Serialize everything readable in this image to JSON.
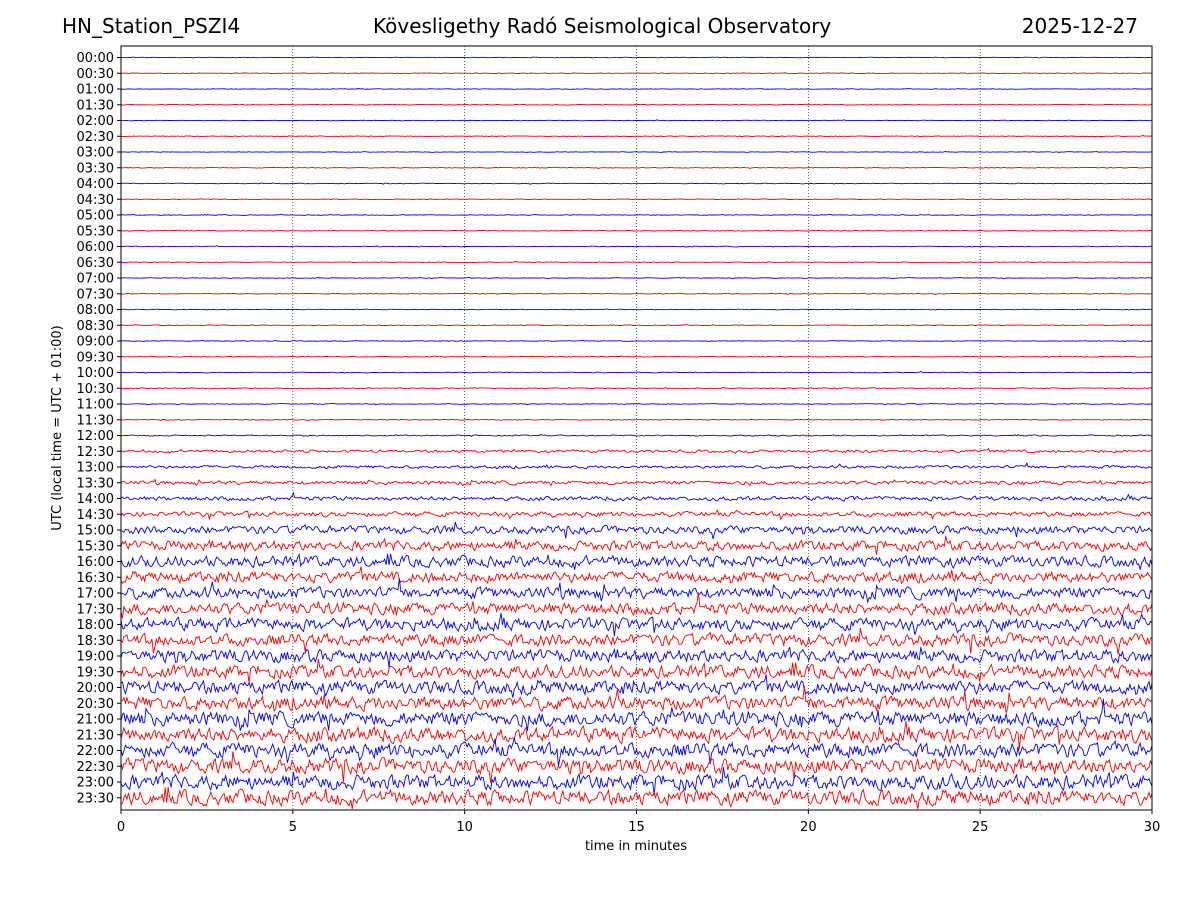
{
  "header": {
    "station": "HN_Station_PSZI4",
    "title": "Kövesligethy Radó Seismological Observatory",
    "date": "2025-12-27"
  },
  "chart_data": {
    "type": "line",
    "title": "Kövesligethy Radó Seismological Observatory",
    "subtitle_left": "HN_Station_PSZI4",
    "subtitle_right": "2025-12-27",
    "xlabel": "time in minutes",
    "ylabel": "UTC (local time = UTC + 01:00)",
    "xlim": [
      0,
      30
    ],
    "x_ticks": [
      "0",
      "5",
      "10",
      "15",
      "20",
      "25",
      "30"
    ],
    "x_gridlines": [
      5,
      10,
      15,
      20,
      25
    ],
    "grid": "vertical dotted",
    "trace_colors": [
      "#0000ff",
      "#ff0000"
    ],
    "rows": [
      "00:00",
      "00:30",
      "01:00",
      "01:30",
      "02:00",
      "02:30",
      "03:00",
      "03:30",
      "04:00",
      "04:30",
      "05:00",
      "05:30",
      "06:00",
      "06:30",
      "07:00",
      "07:30",
      "08:00",
      "08:30",
      "09:00",
      "09:30",
      "10:00",
      "10:30",
      "11:00",
      "11:30",
      "12:00",
      "12:30",
      "13:00",
      "13:30",
      "14:00",
      "14:30",
      "15:00",
      "15:30",
      "16:00",
      "16:30",
      "17:00",
      "17:30",
      "18:00",
      "18:30",
      "19:00",
      "19:30",
      "20:00",
      "20:30",
      "21:00",
      "21:30",
      "22:00",
      "22:30",
      "23:00",
      "23:30"
    ],
    "relative_amplitude": [
      0.12,
      0.13,
      0.12,
      0.14,
      0.12,
      0.14,
      0.12,
      0.14,
      0.14,
      0.13,
      0.14,
      0.14,
      0.14,
      0.15,
      0.14,
      0.14,
      0.14,
      0.15,
      0.14,
      0.15,
      0.15,
      0.2,
      0.16,
      0.16,
      0.22,
      0.55,
      0.6,
      0.75,
      0.85,
      1.0,
      1.6,
      2.0,
      2.2,
      2.2,
      2.3,
      2.4,
      2.5,
      2.5,
      2.6,
      2.6,
      2.7,
      2.8,
      3.0,
      3.0,
      3.0,
      3.0,
      3.0,
      3.0
    ]
  }
}
